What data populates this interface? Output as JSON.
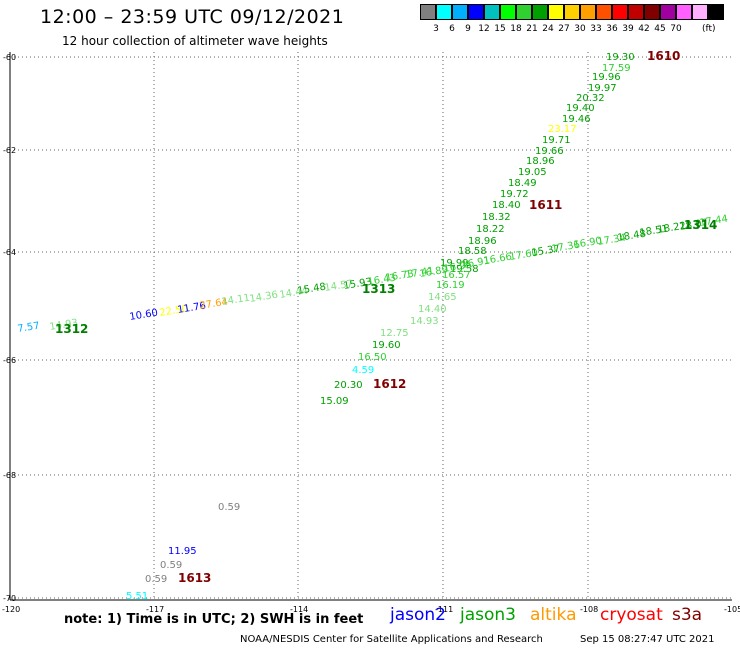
{
  "title": "12:00 – 23:59 UTC 09/12/2021",
  "subtitle": "12 hour collection of altimeter wave heights",
  "scale": {
    "colors": [
      "#808080",
      "#00ffff",
      "#00b0ff",
      "#0000ff",
      "#00c0c0",
      "#00ff00",
      "#30d030",
      "#00a000",
      "#ffff00",
      "#ffd000",
      "#ffa000",
      "#ff5000",
      "#ff0000",
      "#c00000",
      "#800000",
      "#a000a0",
      "#ff60ff",
      "#ffb0ff",
      "#000000"
    ],
    "ticks": [
      "3",
      "6",
      "9",
      "12",
      "15",
      "18",
      "21",
      "24",
      "27",
      "30",
      "33",
      "36",
      "39",
      "42",
      "45",
      "70"
    ],
    "unit": "(ft)"
  },
  "axes": {
    "lat_labels": [
      "-60",
      "-62",
      "-64",
      "-66",
      "-68",
      "-70"
    ],
    "lon_labels": [
      "-120",
      "-117",
      "-114",
      "-111",
      "-108",
      "-105"
    ]
  },
  "tracks": [
    {
      "id": "1610",
      "color": "#800000",
      "points": [
        {
          "v": "19.30",
          "c": "#00a000"
        },
        {
          "v": "17.59",
          "c": "#30d030"
        },
        {
          "v": "19.96",
          "c": "#00a000"
        },
        {
          "v": "19.97",
          "c": "#00a000"
        },
        {
          "v": "20.32",
          "c": "#00a000"
        },
        {
          "v": "19.40",
          "c": "#00a000"
        },
        {
          "v": "19.46",
          "c": "#00a000"
        },
        {
          "v": "23.17",
          "c": "#ffff00"
        },
        {
          "v": "19.71",
          "c": "#00a000"
        },
        {
          "v": "19.66",
          "c": "#00a000"
        },
        {
          "v": "18.96",
          "c": "#00a000"
        },
        {
          "v": "19.05",
          "c": "#00a000"
        },
        {
          "v": "18.49",
          "c": "#00a000"
        },
        {
          "v": "19.72",
          "c": "#00a000"
        },
        {
          "v": "18.40",
          "c": "#00a000"
        }
      ]
    },
    {
      "id": "1611",
      "color": "#800000",
      "points": [
        {
          "v": "18.32",
          "c": "#00a000"
        },
        {
          "v": "18.22",
          "c": "#00a000"
        },
        {
          "v": "18.96",
          "c": "#00a000"
        },
        {
          "v": "18.58",
          "c": "#00a000"
        },
        {
          "v": "19.99",
          "c": "#00a000"
        },
        {
          "v": "19.58",
          "c": "#00a000"
        },
        {
          "v": "16.57",
          "c": "#30d030"
        },
        {
          "v": "16.19",
          "c": "#30d030"
        },
        {
          "v": "14.65",
          "c": "#80e080"
        },
        {
          "v": "14.40",
          "c": "#80e080"
        },
        {
          "v": "14.93",
          "c": "#80e080"
        },
        {
          "v": "12.75",
          "c": "#80e080"
        },
        {
          "v": "19.60",
          "c": "#00a000"
        },
        {
          "v": "16.50",
          "c": "#30d030"
        },
        {
          "v": "4.59",
          "c": "#00ffff"
        },
        {
          "v": "20.30",
          "c": "#00a000"
        },
        {
          "v": "15.09",
          "c": "#00a000"
        }
      ]
    },
    {
      "id": "1612",
      "color": "#800000"
    },
    {
      "id": "1613",
      "color": "#800000",
      "points": [
        {
          "v": "0.59",
          "c": "#808080"
        },
        {
          "v": "11.95",
          "c": "#0000ff"
        },
        {
          "v": "0.59",
          "c": "#808080"
        },
        {
          "v": "0.59",
          "c": "#808080"
        },
        {
          "v": "5.51",
          "c": "#00ffff"
        }
      ]
    },
    {
      "id": "1312",
      "color": "#008000",
      "points": [
        {
          "v": "7.57",
          "c": "#00b0ff"
        },
        {
          "v": "14.93",
          "c": "#80e080"
        },
        {
          "v": "10.60",
          "c": "#0000ff"
        },
        {
          "v": "22.50",
          "c": "#ffff00"
        },
        {
          "v": "11.76",
          "c": "#0000ff"
        },
        {
          "v": "27.64",
          "c": "#ffa000"
        },
        {
          "v": "14.11",
          "c": "#80e080"
        },
        {
          "v": "14.36",
          "c": "#80e080"
        },
        {
          "v": "14.44",
          "c": "#80e080"
        },
        {
          "v": "15.48",
          "c": "#00a000"
        },
        {
          "v": "14.57",
          "c": "#80e080"
        }
      ]
    },
    {
      "id": "1313",
      "color": "#008000",
      "points": [
        {
          "v": "15.93",
          "c": "#00a000"
        },
        {
          "v": "16.43",
          "c": "#30d030"
        },
        {
          "v": "16.73",
          "c": "#30d030"
        },
        {
          "v": "17.41",
          "c": "#30d030"
        },
        {
          "v": "16.89",
          "c": "#30d030"
        },
        {
          "v": "16.95",
          "c": "#30d030"
        },
        {
          "v": "16.91",
          "c": "#30d030"
        },
        {
          "v": "16.66",
          "c": "#30d030"
        },
        {
          "v": "17.60",
          "c": "#30d030"
        },
        {
          "v": "15.37",
          "c": "#00a000"
        },
        {
          "v": "17.36",
          "c": "#30d030"
        },
        {
          "v": "16.90",
          "c": "#30d030"
        },
        {
          "v": "17.34",
          "c": "#30d030"
        },
        {
          "v": "18.48",
          "c": "#00a000"
        },
        {
          "v": "18.51",
          "c": "#00a000"
        },
        {
          "v": "18.22",
          "c": "#00a000"
        },
        {
          "v": "18.07",
          "c": "#00a000"
        },
        {
          "v": "17.44",
          "c": "#30d030"
        }
      ]
    },
    {
      "id": "1314",
      "color": "#008000"
    }
  ],
  "note": "note: 1) Time is in UTC; 2) SWH is in feet",
  "satellites": [
    {
      "name": "jason2",
      "color": "#0000ff"
    },
    {
      "name": "jason3",
      "color": "#00a000"
    },
    {
      "name": "altika",
      "color": "#ff9900"
    },
    {
      "name": "cryosat",
      "color": "#ff0000"
    },
    {
      "name": "s3a",
      "color": "#800000"
    }
  ],
  "footer": "NOAA/NESDIS Center for Satellite Applications and Research",
  "generated": "Sep 15 08:27:47 UTC 2021"
}
